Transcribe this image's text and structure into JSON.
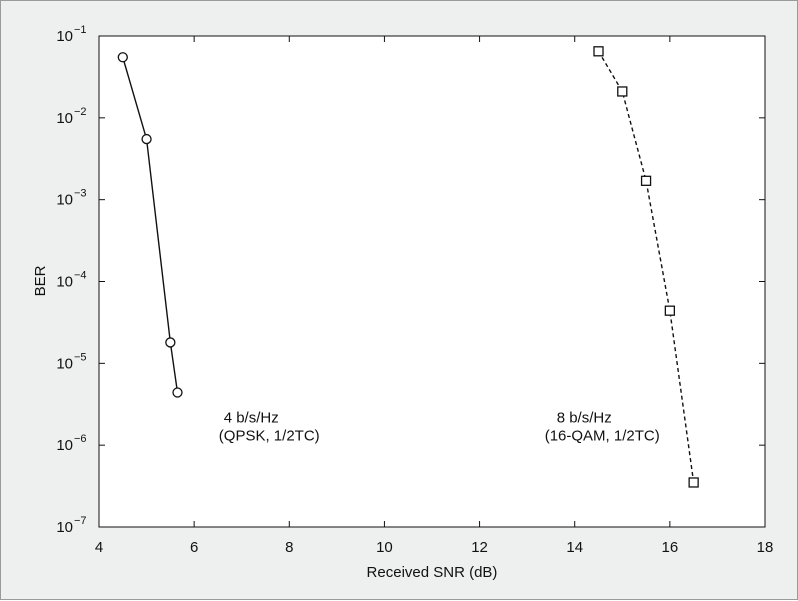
{
  "chart_data": {
    "type": "line",
    "xlabel": "Received SNR (dB)",
    "ylabel": "BER",
    "xlim": [
      4,
      18
    ],
    "ylim": [
      1e-07,
      0.1
    ],
    "yscale": "log",
    "grid": false,
    "x_ticks": [
      "4",
      "6",
      "8",
      "10",
      "12",
      "14",
      "16",
      "18"
    ],
    "y_ticks": [
      {
        "base": "10",
        "exp": "−1"
      },
      {
        "base": "10",
        "exp": "−2"
      },
      {
        "base": "10",
        "exp": "−3"
      },
      {
        "base": "10",
        "exp": "−4"
      },
      {
        "base": "10",
        "exp": "−5"
      },
      {
        "base": "10",
        "exp": "−6"
      },
      {
        "base": "10",
        "exp": "−7"
      }
    ],
    "series": [
      {
        "marker": "circle",
        "line": "solid",
        "x": [
          4.5,
          5.0,
          5.5,
          5.65
        ],
        "y": [
          0.055,
          0.0055,
          1.8e-05,
          4.4e-06
        ]
      },
      {
        "marker": "square",
        "line": "dashed",
        "x": [
          14.5,
          15.0,
          15.5,
          16.0,
          16.5
        ],
        "y": [
          0.065,
          0.021,
          0.0017,
          4.4e-05,
          3.5e-07
        ]
      }
    ],
    "annotations": [
      {
        "lines": [
          "4 b/s/Hz",
          "(QPSK, 1/2TC)"
        ]
      },
      {
        "lines": [
          "8 b/s/Hz",
          "(16-QAM, 1/2TC)"
        ]
      }
    ]
  }
}
